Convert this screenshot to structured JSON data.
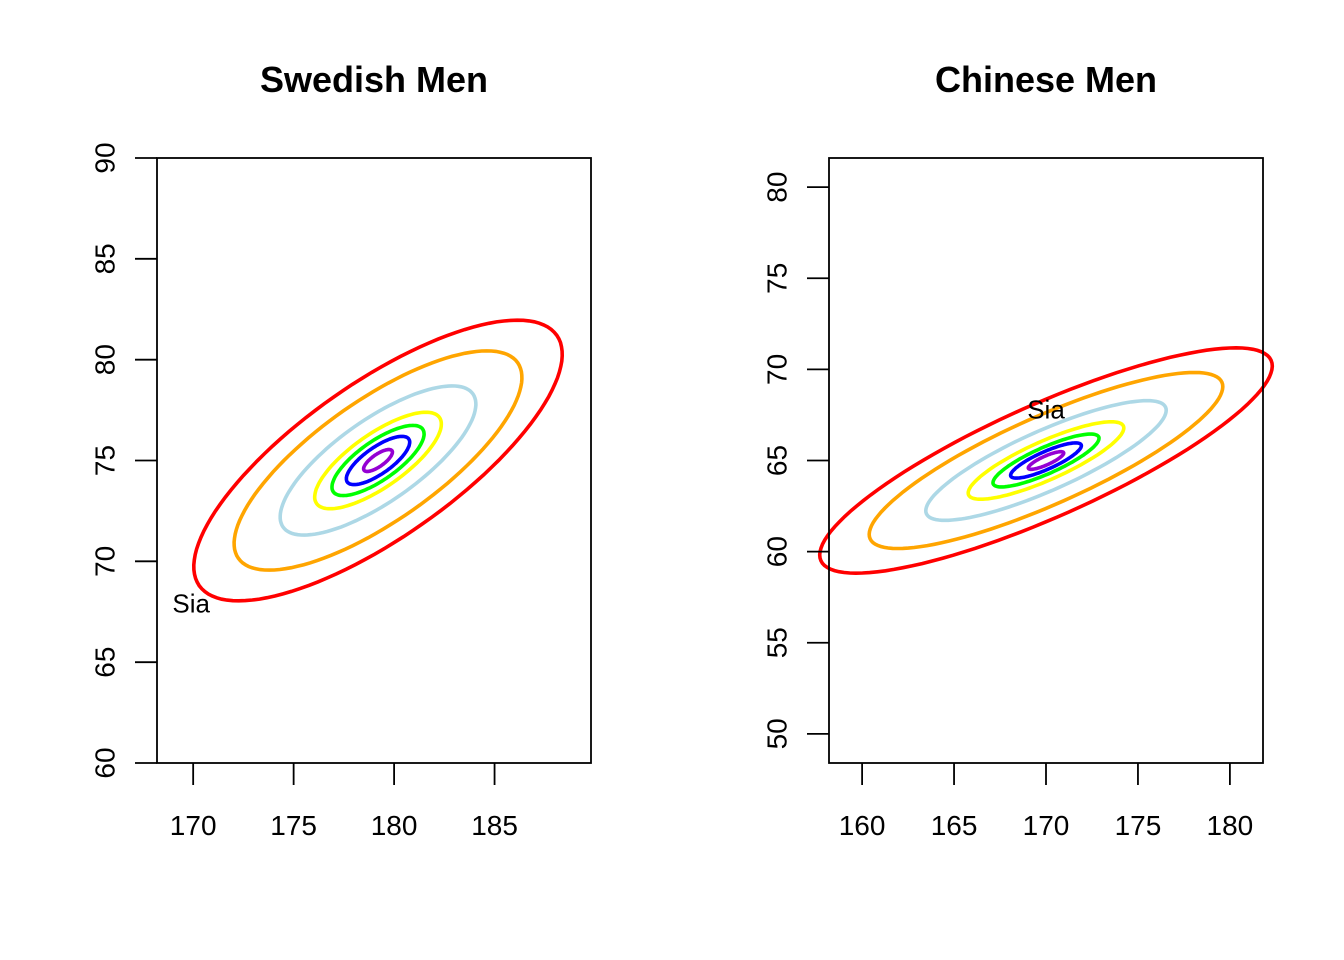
{
  "chart_data": [
    {
      "type": "contour",
      "title": "Swedish Men",
      "xlabel": "",
      "ylabel": "",
      "xlim": [
        168.2,
        189.8
      ],
      "ylim": [
        60,
        90
      ],
      "x_ticks": [
        170,
        175,
        180,
        185
      ],
      "y_ticks": [
        60,
        65,
        70,
        75,
        80,
        85,
        90
      ],
      "mean": [
        179.2,
        75.0
      ],
      "contour_colors": [
        "#9400D3",
        "#0000FF",
        "#00FF00",
        "#FFFF00",
        "#ADD8E6",
        "#FFA500",
        "#FF0000"
      ],
      "annotation": {
        "text": "Sia",
        "x": 169.9,
        "y": 67.9
      }
    },
    {
      "type": "contour",
      "title": "Chinese Men",
      "xlabel": "",
      "ylabel": "",
      "xlim": [
        158.2,
        181.8
      ],
      "ylim": [
        48.4,
        81.6
      ],
      "x_ticks": [
        160,
        165,
        170,
        175,
        180
      ],
      "y_ticks": [
        50,
        55,
        60,
        65,
        70,
        75,
        80
      ],
      "mean": [
        170.0,
        65.0
      ],
      "contour_colors": [
        "#9400D3",
        "#0000FF",
        "#00FF00",
        "#FFFF00",
        "#ADD8E6",
        "#FFA500",
        "#FF0000"
      ],
      "annotation": {
        "text": "Sia",
        "x": 170.0,
        "y": 67.8
      }
    }
  ]
}
